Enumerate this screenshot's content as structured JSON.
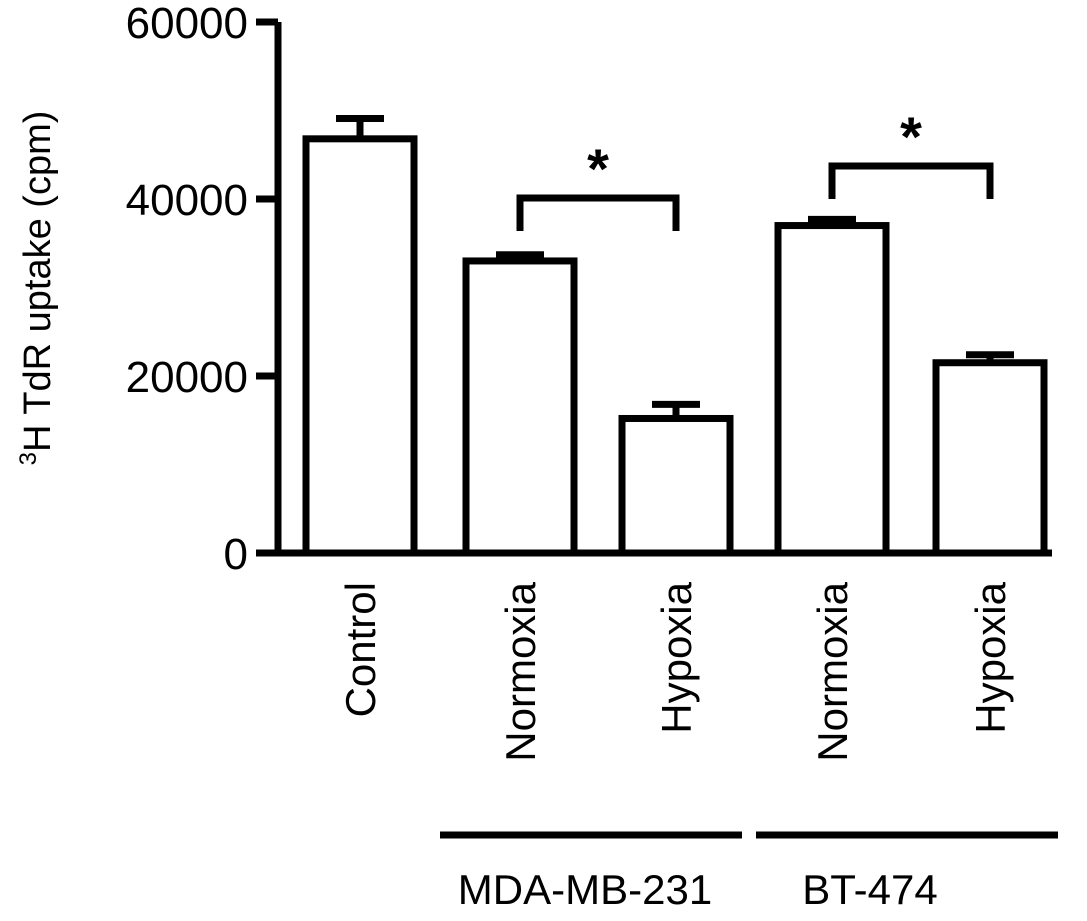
{
  "chart_data": {
    "type": "bar",
    "categories": [
      "Control",
      "Normoxia",
      "Hypoxia",
      "Normoxia",
      "Hypoxia"
    ],
    "values": [
      46800,
      33000,
      15200,
      37000,
      21500
    ],
    "errors": [
      2300,
      700,
      1600,
      700,
      900
    ],
    "title": "",
    "ylabel_base": "3H TdR uptake (cpm)",
    "ylabel_sup": "3",
    "ylabel_rest": "H TdR uptake (cpm)",
    "xlabel": "",
    "ylim": [
      0,
      60000
    ],
    "yticks": [
      0,
      20000,
      40000,
      60000
    ],
    "ytick_labels": [
      "0",
      "20000",
      "40000",
      "60000"
    ],
    "groups": [
      {
        "name": "MDA-MB-231",
        "members": [
          1,
          2
        ]
      },
      {
        "name": "BT-474",
        "members": [
          3,
          4
        ]
      }
    ],
    "significance": [
      {
        "between": [
          1,
          2
        ],
        "label": "*"
      },
      {
        "between": [
          3,
          4
        ],
        "label": "*"
      }
    ],
    "bar_fill": "#ffffff",
    "bar_stroke": "#000000",
    "grid": false,
    "legend": "none"
  }
}
